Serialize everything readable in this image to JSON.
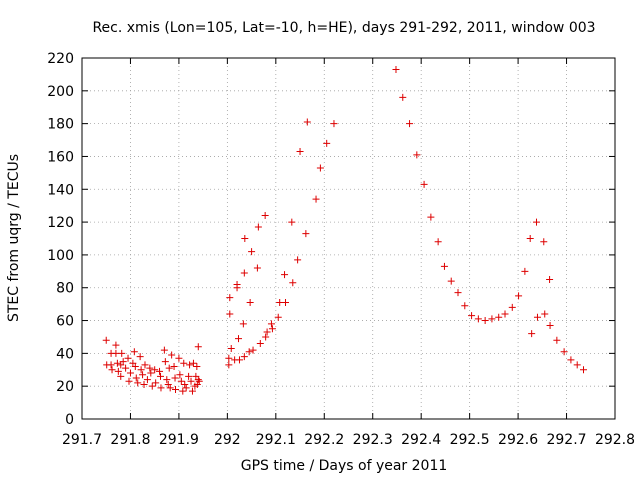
{
  "chart_data": {
    "type": "scatter",
    "title": "Rec. xmis (Lon=105, Lat=-10, h=HE), days 291-292, 2011, window 003",
    "xlabel": "GPS time / Days of year 2011",
    "ylabel": "STEC from uqrg / TECUs",
    "xlim": [
      291.7,
      292.8
    ],
    "ylim": [
      0,
      220
    ],
    "x_ticks": [
      "291.7",
      "291.8",
      "291.9",
      "292",
      "292.1",
      "292.2",
      "292.3",
      "292.4",
      "292.5",
      "292.6",
      "292.7",
      "292.8"
    ],
    "y_ticks": [
      "0",
      "20",
      "40",
      "60",
      "80",
      "100",
      "120",
      "140",
      "160",
      "180",
      "200",
      "220"
    ],
    "grid": true,
    "marker": "+",
    "color": "#dd0000",
    "series": [
      {
        "name": "",
        "points": [
          [
            291.75,
            48
          ],
          [
            291.751,
            33
          ],
          [
            291.76,
            40
          ],
          [
            291.76,
            33
          ],
          [
            291.762,
            30
          ],
          [
            291.77,
            45
          ],
          [
            291.77,
            40
          ],
          [
            291.773,
            34
          ],
          [
            291.775,
            29
          ],
          [
            291.78,
            33
          ],
          [
            291.78,
            26
          ],
          [
            291.782,
            40
          ],
          [
            291.785,
            35
          ],
          [
            291.79,
            31
          ],
          [
            291.795,
            37
          ],
          [
            291.797,
            23
          ],
          [
            291.8,
            28
          ],
          [
            291.805,
            34
          ],
          [
            291.808,
            41
          ],
          [
            291.81,
            32
          ],
          [
            291.812,
            25
          ],
          [
            291.815,
            22
          ],
          [
            291.82,
            38
          ],
          [
            291.822,
            30
          ],
          [
            291.825,
            27
          ],
          [
            291.828,
            21
          ],
          [
            291.83,
            33
          ],
          [
            291.835,
            24
          ],
          [
            291.84,
            31
          ],
          [
            291.842,
            28
          ],
          [
            291.845,
            20
          ],
          [
            291.85,
            30
          ],
          [
            291.852,
            22
          ],
          [
            291.86,
            29
          ],
          [
            291.862,
            26
          ],
          [
            291.863,
            19
          ],
          [
            291.87,
            42
          ],
          [
            291.872,
            35
          ],
          [
            291.875,
            24
          ],
          [
            291.878,
            21
          ],
          [
            291.88,
            31
          ],
          [
            291.882,
            19
          ],
          [
            291.885,
            39
          ],
          [
            291.89,
            32
          ],
          [
            291.892,
            25
          ],
          [
            291.893,
            18
          ],
          [
            291.9,
            37
          ],
          [
            291.902,
            27
          ],
          [
            291.905,
            23
          ],
          [
            291.908,
            17
          ],
          [
            291.91,
            34
          ],
          [
            291.912,
            21
          ],
          [
            291.915,
            19
          ],
          [
            291.92,
            26
          ],
          [
            291.922,
            33
          ],
          [
            291.925,
            23
          ],
          [
            291.928,
            17
          ],
          [
            291.93,
            34
          ],
          [
            291.933,
            20
          ],
          [
            291.935,
            26
          ],
          [
            291.937,
            32
          ],
          [
            291.938,
            21
          ],
          [
            291.94,
            24
          ],
          [
            291.94,
            44
          ],
          [
            291.942,
            23
          ],
          [
            292.003,
            33
          ],
          [
            292.003,
            37
          ],
          [
            292.005,
            64
          ],
          [
            292.005,
            74
          ],
          [
            292.008,
            43
          ],
          [
            292.015,
            36
          ],
          [
            292.02,
            82
          ],
          [
            292.02,
            80
          ],
          [
            292.023,
            49
          ],
          [
            292.025,
            36
          ],
          [
            292.033,
            58
          ],
          [
            292.035,
            38
          ],
          [
            292.035,
            89
          ],
          [
            292.036,
            110
          ],
          [
            292.045,
            41
          ],
          [
            292.047,
            71
          ],
          [
            292.05,
            102
          ],
          [
            292.053,
            42
          ],
          [
            292.062,
            92
          ],
          [
            292.064,
            117
          ],
          [
            292.068,
            46
          ],
          [
            292.078,
            124
          ],
          [
            292.079,
            50
          ],
          [
            292.082,
            53
          ],
          [
            292.091,
            58
          ],
          [
            292.093,
            55
          ],
          [
            292.105,
            62
          ],
          [
            292.108,
            71
          ],
          [
            292.118,
            88
          ],
          [
            292.12,
            71
          ],
          [
            292.133,
            120
          ],
          [
            292.135,
            83
          ],
          [
            292.145,
            97
          ],
          [
            292.15,
            163
          ],
          [
            292.162,
            113
          ],
          [
            292.165,
            181
          ],
          [
            292.183,
            134
          ],
          [
            292.192,
            153
          ],
          [
            292.205,
            168
          ],
          [
            292.22,
            180
          ],
          [
            292.348,
            213
          ],
          [
            292.362,
            196
          ],
          [
            292.376,
            180
          ],
          [
            292.391,
            161
          ],
          [
            292.406,
            143
          ],
          [
            292.42,
            123
          ],
          [
            292.435,
            108
          ],
          [
            292.448,
            93
          ],
          [
            292.462,
            84
          ],
          [
            292.476,
            77
          ],
          [
            292.49,
            69
          ],
          [
            292.504,
            63
          ],
          [
            292.518,
            61
          ],
          [
            292.532,
            60
          ],
          [
            292.546,
            61
          ],
          [
            292.56,
            62
          ],
          [
            292.573,
            64
          ],
          [
            292.588,
            68
          ],
          [
            292.601,
            75
          ],
          [
            292.614,
            90
          ],
          [
            292.625,
            110
          ],
          [
            292.628,
            52
          ],
          [
            292.638,
            120
          ],
          [
            292.64,
            62
          ],
          [
            292.653,
            108
          ],
          [
            292.655,
            64
          ],
          [
            292.665,
            85
          ],
          [
            292.666,
            57
          ],
          [
            292.68,
            48
          ],
          [
            292.695,
            41
          ],
          [
            292.709,
            36
          ],
          [
            292.722,
            33
          ],
          [
            292.735,
            30
          ]
        ]
      }
    ]
  }
}
